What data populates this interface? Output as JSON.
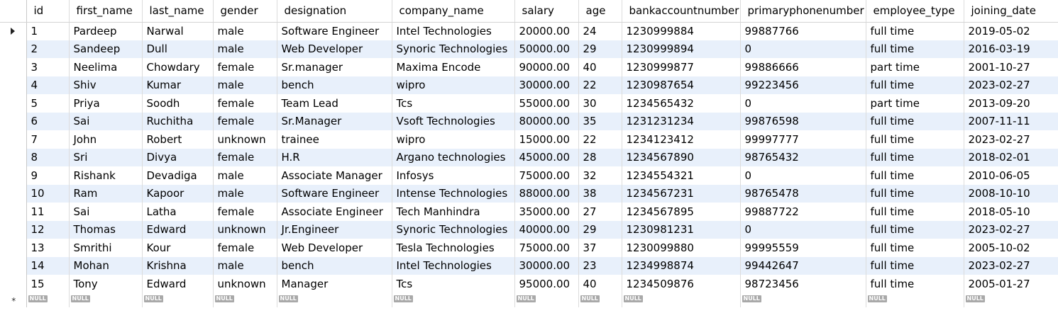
{
  "columns": [
    "id",
    "first_name",
    "last_name",
    "gender",
    "designation",
    "company_name",
    "salary",
    "age",
    "bankaccountnumber",
    "primaryphonenumber",
    "employee_type",
    "joining_date"
  ],
  "rows": [
    [
      "1",
      "Pardeep",
      "Narwal",
      "male",
      "Software Engineer",
      "Intel Technologies",
      "20000.00",
      "24",
      "1230999884",
      "99887766",
      "full time",
      "2019-05-02"
    ],
    [
      "2",
      "Sandeep",
      "Dull",
      "male",
      "Web Developer",
      "Synoric Technologies",
      "50000.00",
      "29",
      "1230999894",
      "0",
      "full time",
      "2016-03-19"
    ],
    [
      "3",
      "Neelima",
      "Chowdary",
      "female",
      "Sr.manager",
      "Maxima Encode",
      "90000.00",
      "40",
      "1230999877",
      "99886666",
      "part time",
      "2001-10-27"
    ],
    [
      "4",
      "Shiv",
      "Kumar",
      "male",
      "bench",
      "wipro",
      "30000.00",
      "22",
      "1230987654",
      "99223456",
      "full time",
      "2023-02-27"
    ],
    [
      "5",
      "Priya",
      "Soodh",
      "female",
      "Team Lead",
      "Tcs",
      "55000.00",
      "30",
      "1234565432",
      "0",
      "part time",
      "2013-09-20"
    ],
    [
      "6",
      "Sai",
      "Ruchitha",
      "female",
      "Sr.Manager",
      "Vsoft Technologies",
      "80000.00",
      "35",
      "1231231234",
      "99876598",
      "full time",
      "2007-11-11"
    ],
    [
      "7",
      "John",
      "Robert",
      "unknown",
      "trainee",
      "wipro",
      "15000.00",
      "22",
      "1234123412",
      "99997777",
      "full time",
      "2023-02-27"
    ],
    [
      "8",
      "Sri",
      "Divya",
      "female",
      "H.R",
      "Argano technologies",
      "45000.00",
      "28",
      "1234567890",
      "98765432",
      "full time",
      "2018-02-01"
    ],
    [
      "9",
      "Rishank",
      "Devadiga",
      "male",
      "Associate Manager",
      "Infosys",
      "75000.00",
      "32",
      "1234554321",
      "0",
      "full time",
      "2010-06-05"
    ],
    [
      "10",
      "Ram",
      "Kapoor",
      "male",
      "Software Engineer",
      "Intense Technologies",
      "88000.00",
      "38",
      "1234567231",
      "98765478",
      "full time",
      "2008-10-10"
    ],
    [
      "11",
      "Sai",
      "Latha",
      "female",
      "Associate Engineer",
      "Tech Manhindra",
      "35000.00",
      "27",
      "1234567895",
      "99887722",
      "full time",
      "2018-05-10"
    ],
    [
      "12",
      "Thomas",
      "Edward",
      "unknown",
      "Jr.Engineer",
      "Synoric Technologies",
      "40000.00",
      "29",
      "1230981231",
      "0",
      "full time",
      "2023-02-27"
    ],
    [
      "13",
      "Smrithi",
      "Kour",
      "female",
      "Web Developer",
      "Tesla Technologies",
      "75000.00",
      "37",
      "1230099880",
      "99995559",
      "full time",
      "2005-10-02"
    ],
    [
      "14",
      "Mohan",
      "Krishna",
      "male",
      "bench",
      "Intel Technologies",
      "30000.00",
      "23",
      "1234998874",
      "99442647",
      "full time",
      "2023-02-27"
    ],
    [
      "15",
      "Tony",
      "Edward",
      "unknown",
      "Manager",
      "Tcs",
      "95000.00",
      "40",
      "1234509876",
      "98723456",
      "full time",
      "2005-01-27"
    ]
  ],
  "null_label": "NULL",
  "new_row_marker": "*",
  "current_row_index": 0,
  "colors": {
    "stripe": "#e8f0fb",
    "null_badge": "#a9a9a9"
  }
}
